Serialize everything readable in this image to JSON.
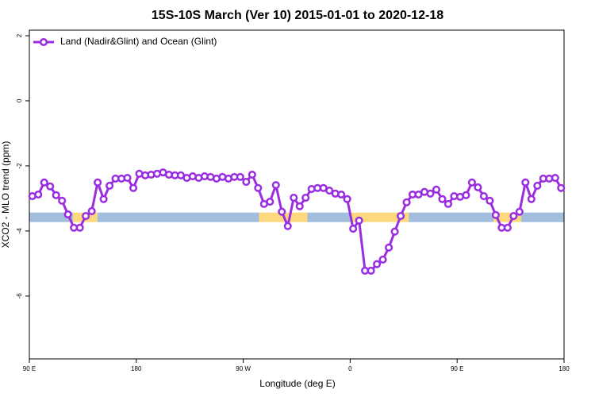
{
  "chart_data": {
    "type": "line",
    "title": "15S-10S March (Ver 10)   2015-01-01 to 2020-12-18",
    "x_label": "Longitude (deg E)",
    "y_label": "XCO2 - MLO trend (ppm)",
    "x": [
      92.5,
      97.5,
      102.5,
      107.5,
      112.5,
      117.5,
      122.5,
      127.5,
      132.5,
      137.5,
      142.5,
      147.5,
      152.5,
      157.5,
      162.5,
      167.5,
      172.5,
      177.5,
      182.5,
      187.5,
      192.5,
      197.5,
      202.5,
      207.5,
      212.5,
      217.5,
      222.5,
      227.5,
      232.5,
      237.5,
      242.5,
      247.5,
      252.5,
      257.5,
      262.5,
      267.5,
      272.5,
      277.5,
      282.5,
      287.5,
      292.5,
      297.5,
      302.5,
      307.5,
      312.5,
      317.5,
      322.5,
      327.5,
      332.5,
      337.5,
      342.5,
      347.5,
      352.5,
      357.5,
      362.5,
      367.5,
      372.5,
      377.5,
      382.5,
      387.5,
      392.5,
      397.5,
      402.5,
      407.5,
      412.5,
      417.5,
      422.5,
      427.5,
      432.5,
      437.5,
      442.5,
      447.5,
      452.5,
      457.5,
      462.5,
      467.5,
      472.5,
      477.5,
      482.5,
      487.5,
      492.5,
      497.5,
      502.5,
      507.5,
      512.5,
      517.5,
      522.5,
      527.5,
      532.5,
      537.5
    ],
    "series": [
      {
        "name": "Land (Nadir&Glint) and Ocean (Glint)",
        "color": "#9b2de0",
        "values": [
          -2.93,
          -2.88,
          -2.51,
          -2.63,
          -2.9,
          -3.07,
          -3.49,
          -3.9,
          -3.9,
          -3.54,
          -3.39,
          -2.51,
          -3.02,
          -2.61,
          -2.39,
          -2.39,
          -2.37,
          -2.68,
          -2.24,
          -2.29,
          -2.27,
          -2.24,
          -2.2,
          -2.27,
          -2.29,
          -2.29,
          -2.37,
          -2.32,
          -2.37,
          -2.32,
          -2.34,
          -2.39,
          -2.34,
          -2.39,
          -2.34,
          -2.34,
          -2.49,
          -2.27,
          -2.68,
          -3.17,
          -3.1,
          -2.59,
          -3.41,
          -3.85,
          -2.98,
          -3.24,
          -2.98,
          -2.71,
          -2.68,
          -2.68,
          -2.76,
          -2.85,
          -2.88,
          -3.02,
          -3.93,
          -3.68,
          -5.22,
          -5.22,
          -5.02,
          -4.88,
          -4.51,
          -4.02,
          -3.54,
          -3.12,
          -2.88,
          -2.88,
          -2.8,
          -2.85,
          -2.73,
          -3.02,
          -3.17,
          -2.93,
          -2.95,
          -2.9,
          -2.51,
          -2.66,
          -2.93,
          -3.07,
          -3.51,
          -3.9,
          -3.9,
          -3.54,
          -3.41,
          -2.51,
          -3.02,
          -2.61,
          -2.39,
          -2.39,
          -2.37,
          -2.68
        ]
      }
    ],
    "surface_band": {
      "y": -3.58,
      "segments": [
        {
          "from": 90,
          "to": 126.7,
          "color": "#a3bddc"
        },
        {
          "from": 126.7,
          "to": 147.3,
          "color": "#fcd97c"
        },
        {
          "from": 147.3,
          "to": 283.3,
          "color": "#a3bddc"
        },
        {
          "from": 283.3,
          "to": 324,
          "color": "#fcd97c"
        },
        {
          "from": 324,
          "to": 360.7,
          "color": "#a3bddc"
        },
        {
          "from": 360.7,
          "to": 409.3,
          "color": "#fcd97c"
        },
        {
          "from": 409.3,
          "to": 480.7,
          "color": "#a3bddc"
        },
        {
          "from": 480.7,
          "to": 504,
          "color": "#fcd97c"
        },
        {
          "from": 504,
          "to": 540,
          "color": "#a3bddc"
        }
      ]
    },
    "xlim": [
      90,
      540
    ],
    "xticks": [
      {
        "value": 90,
        "label": "90 E"
      },
      {
        "value": 180,
        "label": "180"
      },
      {
        "value": 270,
        "label": "90 W"
      },
      {
        "value": 360,
        "label": "0"
      },
      {
        "value": 450,
        "label": "90 E"
      },
      {
        "value": 540,
        "label": "180"
      }
    ],
    "ylim": [
      -7.93,
      2.17
    ],
    "yticks": [
      -6,
      -4,
      -2,
      0,
      2
    ],
    "legend": "top-left"
  }
}
